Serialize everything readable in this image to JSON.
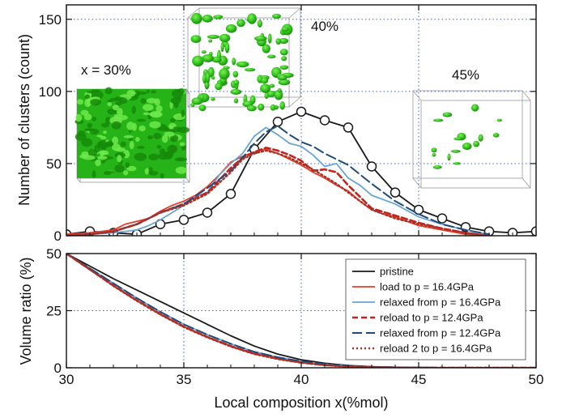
{
  "chart_data": [
    {
      "type": "line",
      "ylabel": "Number of clusters (count)",
      "xlim": [
        30,
        50
      ],
      "ylim": [
        0,
        160
      ],
      "xticks": [
        30,
        35,
        40,
        45,
        50
      ],
      "yticks": [
        0,
        50,
        100,
        150
      ],
      "grid": "dotted blue at major ticks",
      "annotations": [
        "x = 30%",
        "40%",
        "45%"
      ],
      "series": [
        {
          "key": "pristine",
          "color": "#1a1a1a",
          "dash": "solid",
          "markers": "open-circle",
          "x": [
            30,
            31,
            32,
            33,
            34,
            35,
            36,
            37,
            38,
            39,
            40,
            41,
            42,
            43,
            44,
            45,
            46,
            47,
            48,
            49,
            50
          ],
          "y": [
            1,
            3,
            2,
            1,
            8,
            11,
            16,
            29,
            60,
            79,
            86,
            80,
            75,
            48,
            30,
            18,
            12,
            6,
            3,
            2,
            3
          ]
        },
        {
          "key": "load",
          "color": "#e0402d",
          "dash": "solid",
          "x": [
            30,
            31,
            32,
            32.5,
            33,
            33.5,
            34,
            34.5,
            35,
            35.5,
            36,
            36.5,
            37,
            37.5,
            38,
            38.5,
            39,
            39.5,
            40,
            40.5,
            41,
            41.5,
            42,
            42.5,
            43,
            43.5,
            44,
            45,
            46,
            47,
            48
          ],
          "y": [
            1,
            2,
            4,
            8,
            10,
            12,
            17,
            21,
            24,
            28,
            34,
            42,
            51,
            55,
            58,
            60,
            57,
            53,
            49,
            44,
            40,
            35,
            31,
            24,
            18,
            15,
            13,
            7,
            4,
            1,
            0
          ]
        },
        {
          "key": "relaxed1",
          "color": "#6aa5d2",
          "dash": "solid",
          "x": [
            30,
            31,
            32,
            33,
            33.5,
            34,
            34.5,
            35,
            35.5,
            36,
            36.5,
            37,
            37.5,
            38,
            38.5,
            39,
            39.5,
            40,
            40.5,
            41,
            41.5,
            42,
            42.5,
            43,
            44,
            45,
            46,
            47,
            48
          ],
          "y": [
            0,
            1,
            2,
            4,
            7,
            11,
            16,
            21,
            27,
            30,
            42,
            50,
            57,
            69,
            75,
            70,
            64,
            62,
            56,
            48,
            50,
            40,
            35,
            28,
            22,
            13,
            8,
            4,
            1
          ]
        },
        {
          "key": "reload",
          "color": "#c4241d",
          "dash": "dash",
          "x": [
            30,
            31,
            32,
            33,
            34,
            35,
            36,
            37,
            37.5,
            38,
            38.5,
            39,
            39.5,
            40,
            40.5,
            41,
            41.5,
            42,
            42.5,
            43,
            44,
            45,
            46,
            47,
            48
          ],
          "y": [
            0,
            1,
            3,
            8,
            16,
            22,
            30,
            47,
            54,
            58,
            61,
            59,
            56,
            52,
            45,
            46,
            44,
            35,
            27,
            19,
            14,
            9,
            5,
            2,
            0
          ]
        },
        {
          "key": "relaxed2",
          "color": "#1e4b7a",
          "dash": "longdash",
          "x": [
            30,
            31,
            32,
            33,
            34,
            35,
            36,
            37,
            37.5,
            38,
            38.5,
            39,
            39.5,
            40,
            40.5,
            41,
            41.5,
            42,
            43,
            44,
            45,
            46,
            47,
            48
          ],
          "y": [
            0,
            1,
            3,
            8,
            16,
            22,
            33,
            45,
            54,
            64,
            72,
            76,
            70,
            65,
            62,
            57,
            53,
            49,
            36,
            24,
            15,
            8,
            4,
            1
          ]
        },
        {
          "key": "reload2",
          "color": "#a83228",
          "dash": "dot",
          "x": [
            30,
            31,
            32,
            33,
            34,
            35,
            36,
            37,
            37.5,
            38,
            38.5,
            39,
            39.5,
            40,
            40.5,
            41,
            41.5,
            42,
            43,
            44,
            45,
            46,
            47,
            48
          ],
          "y": [
            0,
            1,
            3,
            8,
            16,
            21,
            29,
            44,
            53,
            57,
            59,
            57,
            54,
            50,
            46,
            41,
            36,
            30,
            18,
            12,
            8,
            5,
            2,
            0
          ]
        }
      ]
    },
    {
      "type": "line",
      "xlabel": "Local composition x(%mol)",
      "ylabel": "Volume ratio (%)",
      "xlim": [
        30,
        50
      ],
      "ylim": [
        0,
        50
      ],
      "xticks": [
        30,
        35,
        40,
        45,
        50
      ],
      "yticks": [
        0,
        25,
        50
      ],
      "grid": "dotted blue at major ticks",
      "legend_position": "right",
      "series": [
        {
          "name": "pristine",
          "color": "#1a1a1a",
          "dash": "solid",
          "x": [
            30,
            31,
            32,
            33,
            34,
            35,
            36,
            37,
            38,
            39,
            40,
            41,
            42,
            43,
            44,
            45,
            46,
            47,
            48,
            49,
            50
          ],
          "y": [
            50,
            44.5,
            39,
            34,
            29,
            24,
            19,
            14,
            9.5,
            6,
            3.5,
            2,
            1,
            0.5,
            0.2,
            0.1,
            0,
            0,
            0,
            0,
            0
          ]
        },
        {
          "name": "load to p = 16.4GPa",
          "color": "#e0402d",
          "dash": "solid",
          "x": [
            30,
            31,
            32,
            33,
            34,
            35,
            36,
            37,
            38,
            39,
            40,
            41,
            42,
            43,
            44,
            45,
            46,
            47,
            48,
            49,
            50
          ],
          "y": [
            50,
            43,
            36,
            29.5,
            23.5,
            18,
            13.5,
            9.5,
            6.2,
            4,
            2.3,
            1.2,
            0.6,
            0.3,
            0.1,
            0,
            0,
            0,
            0,
            0,
            0
          ]
        },
        {
          "name": "relaxed from p = 16.4GPa",
          "color": "#6aa5d2",
          "dash": "solid",
          "x": [
            30,
            31,
            32,
            33,
            34,
            35,
            36,
            37,
            38,
            39,
            40,
            41,
            42,
            43,
            44,
            45,
            46,
            47,
            48,
            49,
            50
          ],
          "y": [
            50,
            43.5,
            37,
            30.5,
            24.5,
            19,
            14.5,
            10.5,
            7,
            4.6,
            2.8,
            1.6,
            0.8,
            0.4,
            0.2,
            0.1,
            0,
            0,
            0,
            0,
            0
          ]
        },
        {
          "name": "reload to p = 12.4GPa",
          "color": "#c4241d",
          "dash": "dash",
          "x": [
            30,
            31,
            32,
            33,
            34,
            35,
            36,
            37,
            38,
            39,
            40,
            41,
            42,
            43,
            44,
            45,
            46,
            47,
            48,
            49,
            50
          ],
          "y": [
            50,
            43,
            36,
            29.5,
            23.5,
            18,
            13.5,
            9.5,
            6.2,
            4,
            2.3,
            1.2,
            0.6,
            0.3,
            0.1,
            0,
            0,
            0,
            0,
            0,
            0
          ]
        },
        {
          "name": "relaxed from p = 12.4GPa",
          "color": "#1e4b7a",
          "dash": "longdash",
          "x": [
            30,
            31,
            32,
            33,
            34,
            35,
            36,
            37,
            38,
            39,
            40,
            41,
            42,
            43,
            44,
            45,
            46,
            47,
            48,
            49,
            50
          ],
          "y": [
            50,
            43.5,
            37,
            30.5,
            24.5,
            19,
            14.5,
            10.5,
            7,
            4.6,
            2.8,
            1.6,
            0.8,
            0.4,
            0.2,
            0.1,
            0,
            0,
            0,
            0,
            0
          ]
        },
        {
          "name": "reload 2 to p = 16.4GPa",
          "color": "#a83228",
          "dash": "dot",
          "x": [
            30,
            31,
            32,
            33,
            34,
            35,
            36,
            37,
            38,
            39,
            40,
            41,
            42,
            43,
            44,
            45,
            46,
            47,
            48,
            49,
            50
          ],
          "y": [
            50,
            43,
            35.8,
            29.3,
            23.3,
            17.8,
            13.3,
            9.3,
            6,
            3.8,
            2.2,
            1.1,
            0.5,
            0.2,
            0.1,
            0,
            0,
            0,
            0,
            0,
            0
          ]
        }
      ]
    }
  ]
}
